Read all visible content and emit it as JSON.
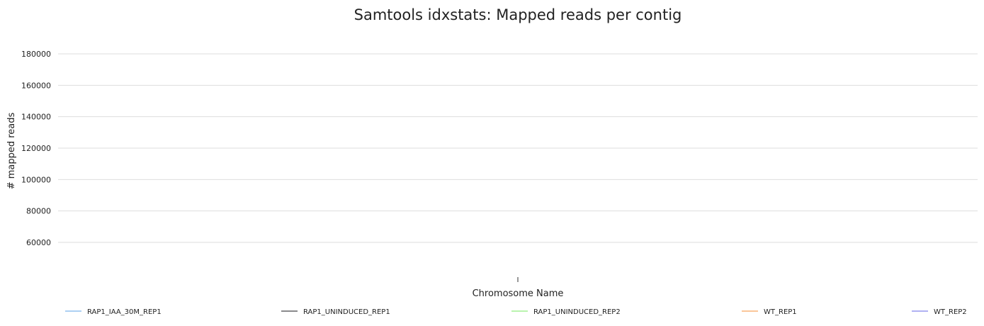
{
  "chart_data": {
    "type": "line",
    "title": "Samtools idxstats: Mapped reads per contig",
    "xlabel": "Chromosome Name",
    "ylabel": "# mapped reads",
    "y_ticks": [
      60000,
      80000,
      100000,
      120000,
      140000,
      160000,
      180000
    ],
    "ylim": [
      40000,
      190000
    ],
    "x_ticks": [
      ""
    ],
    "grid": true,
    "legend_position": "bottom",
    "series": [
      {
        "name": "RAP1_IAA_30M_REP1",
        "color": "#7cb5ec",
        "values": []
      },
      {
        "name": "RAP1_UNINDUCED_REP1",
        "color": "#434348",
        "values": []
      },
      {
        "name": "RAP1_UNINDUCED_REP2",
        "color": "#90ed7d",
        "values": []
      },
      {
        "name": "WT_REP1",
        "color": "#f7a35c",
        "values": []
      },
      {
        "name": "WT_REP2",
        "color": "#8085e9",
        "values": []
      }
    ]
  }
}
